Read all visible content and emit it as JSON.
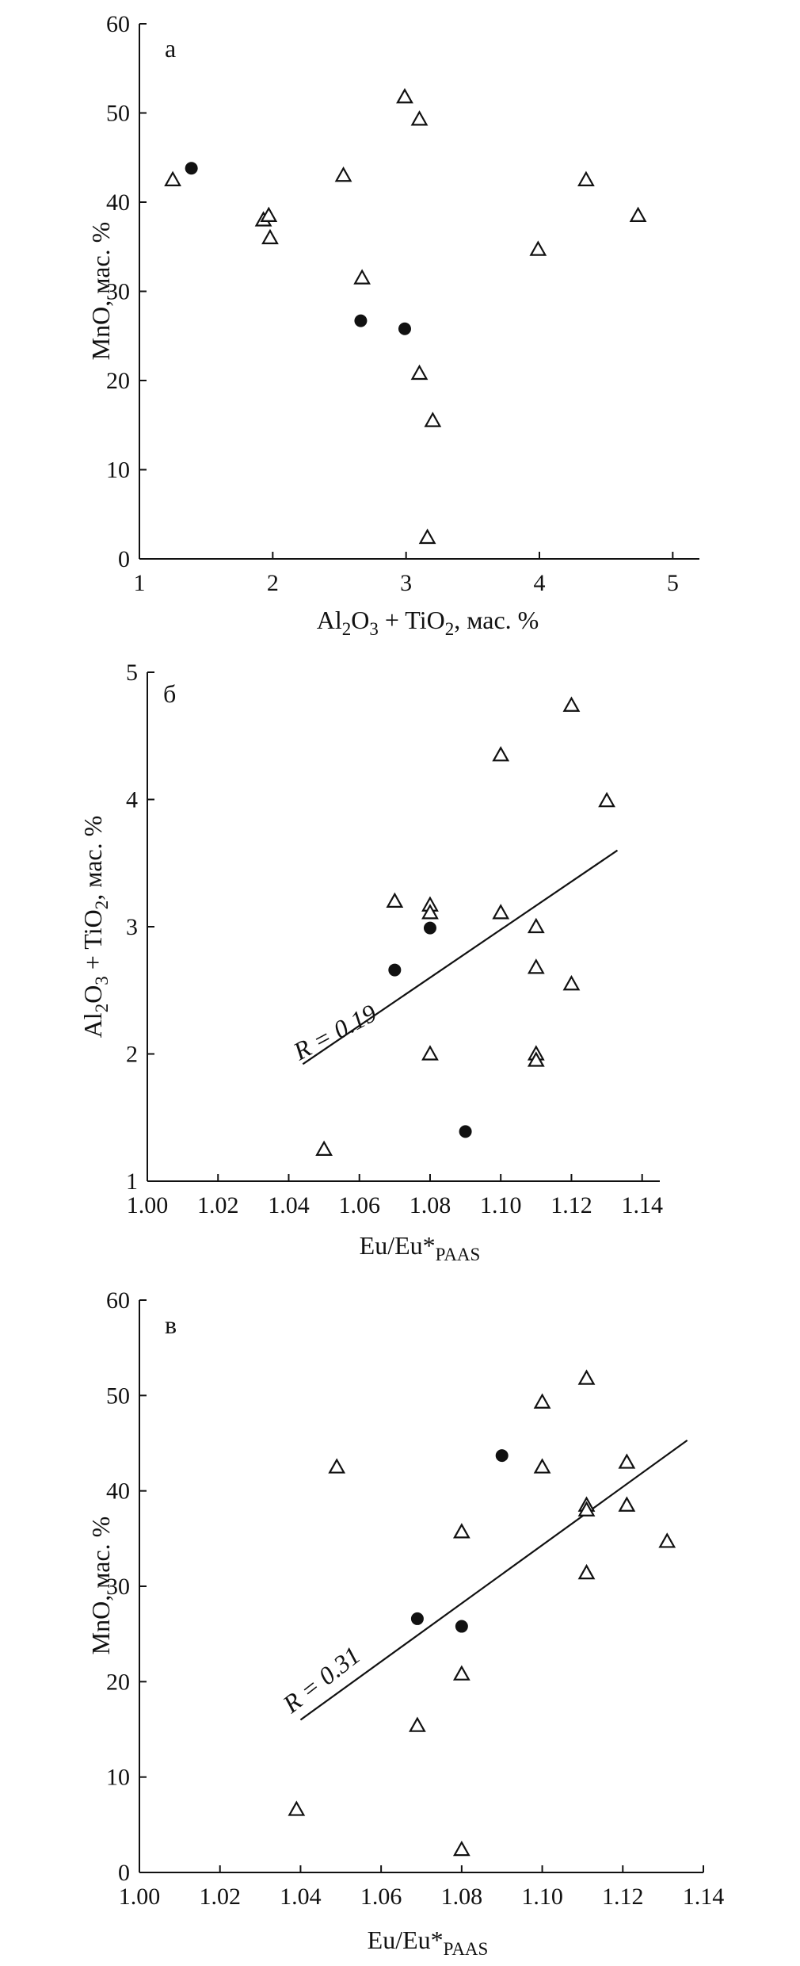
{
  "chart_data": [
    {
      "type": "scatter",
      "panel": "а",
      "xlabel": "Al2O3 + TiO2, мас. %",
      "ylabel": "MnO, мас. %",
      "xlim": [
        1,
        5.2
      ],
      "ylim": [
        0,
        60
      ],
      "xticks": [
        1,
        2,
        3,
        4,
        5
      ],
      "yticks": [
        0,
        10,
        20,
        30,
        40,
        50,
        60
      ],
      "series": [
        {
          "name": "triangles",
          "marker": "triangle-open",
          "points": [
            [
              1.25,
              42.5
            ],
            [
              1.93,
              38
            ],
            [
              1.97,
              38.5
            ],
            [
              1.98,
              36
            ],
            [
              2.53,
              43
            ],
            [
              2.67,
              31.5
            ],
            [
              2.99,
              51.8
            ],
            [
              3.1,
              49.3
            ],
            [
              3.1,
              20.8
            ],
            [
              3.16,
              2.4
            ],
            [
              3.2,
              15.5
            ],
            [
              3.99,
              34.7
            ],
            [
              4.35,
              42.5
            ],
            [
              4.74,
              38.5
            ]
          ]
        },
        {
          "name": "circles",
          "marker": "circle-filled",
          "points": [
            [
              1.39,
              43.8
            ],
            [
              2.66,
              26.7
            ],
            [
              2.99,
              25.8
            ]
          ]
        }
      ]
    },
    {
      "type": "scatter",
      "panel": "б",
      "xlabel": "Eu/Eu*PAAS",
      "ylabel": "Al2O3 + TiO2, мас. %",
      "xlim": [
        1.0,
        1.145
      ],
      "ylim": [
        1,
        5
      ],
      "xticks": [
        "1.00",
        "1.02",
        "1.04",
        "1.06",
        "1.08",
        "1.10",
        "1.12",
        "1.14"
      ],
      "yticks": [
        1,
        2,
        3,
        4,
        5
      ],
      "series": [
        {
          "name": "triangles",
          "marker": "triangle-open",
          "points": [
            [
              1.05,
              1.25
            ],
            [
              1.07,
              3.2
            ],
            [
              1.08,
              3.17
            ],
            [
              1.08,
              3.11
            ],
            [
              1.08,
              2.0
            ],
            [
              1.1,
              4.35
            ],
            [
              1.1,
              3.11
            ],
            [
              1.11,
              3.0
            ],
            [
              1.11,
              2.68
            ],
            [
              1.11,
              2.0
            ],
            [
              1.11,
              1.95
            ],
            [
              1.12,
              4.74
            ],
            [
              1.12,
              2.55
            ],
            [
              1.13,
              3.99
            ]
          ]
        },
        {
          "name": "circles",
          "marker": "circle-filled",
          "points": [
            [
              1.07,
              2.66
            ],
            [
              1.08,
              2.99
            ],
            [
              1.09,
              1.39
            ]
          ]
        }
      ],
      "trendline": {
        "x": [
          1.044,
          1.133
        ],
        "y": [
          1.92,
          3.6
        ]
      },
      "annotation": "R = 0.19"
    },
    {
      "type": "scatter",
      "panel": "в",
      "xlabel": "Eu/Eu*PAAS",
      "ylabel": "MnO, мас. %",
      "xlim": [
        1.0,
        1.14
      ],
      "ylim": [
        0,
        60
      ],
      "xticks": [
        "1.00",
        "1.02",
        "1.04",
        "1.06",
        "1.08",
        "1.10",
        "1.12",
        "1.14"
      ],
      "yticks": [
        0,
        10,
        20,
        30,
        40,
        50,
        60
      ],
      "series": [
        {
          "name": "triangles",
          "marker": "triangle-open",
          "points": [
            [
              1.039,
              6.6
            ],
            [
              1.049,
              42.5
            ],
            [
              1.069,
              15.4
            ],
            [
              1.08,
              35.7
            ],
            [
              1.08,
              20.8
            ],
            [
              1.08,
              2.4
            ],
            [
              1.1,
              49.3
            ],
            [
              1.1,
              42.5
            ],
            [
              1.111,
              51.8
            ],
            [
              1.111,
              38.5
            ],
            [
              1.111,
              38.0
            ],
            [
              1.111,
              31.4
            ],
            [
              1.121,
              43.0
            ],
            [
              1.121,
              38.5
            ],
            [
              1.131,
              34.7
            ]
          ]
        },
        {
          "name": "circles",
          "marker": "circle-filled",
          "points": [
            [
              1.069,
              26.6
            ],
            [
              1.08,
              25.8
            ],
            [
              1.09,
              43.7
            ]
          ]
        }
      ],
      "trendline": {
        "x": [
          1.04,
          1.136
        ],
        "y": [
          16.0,
          45.3
        ]
      },
      "annotation": "R = 0.31"
    }
  ]
}
